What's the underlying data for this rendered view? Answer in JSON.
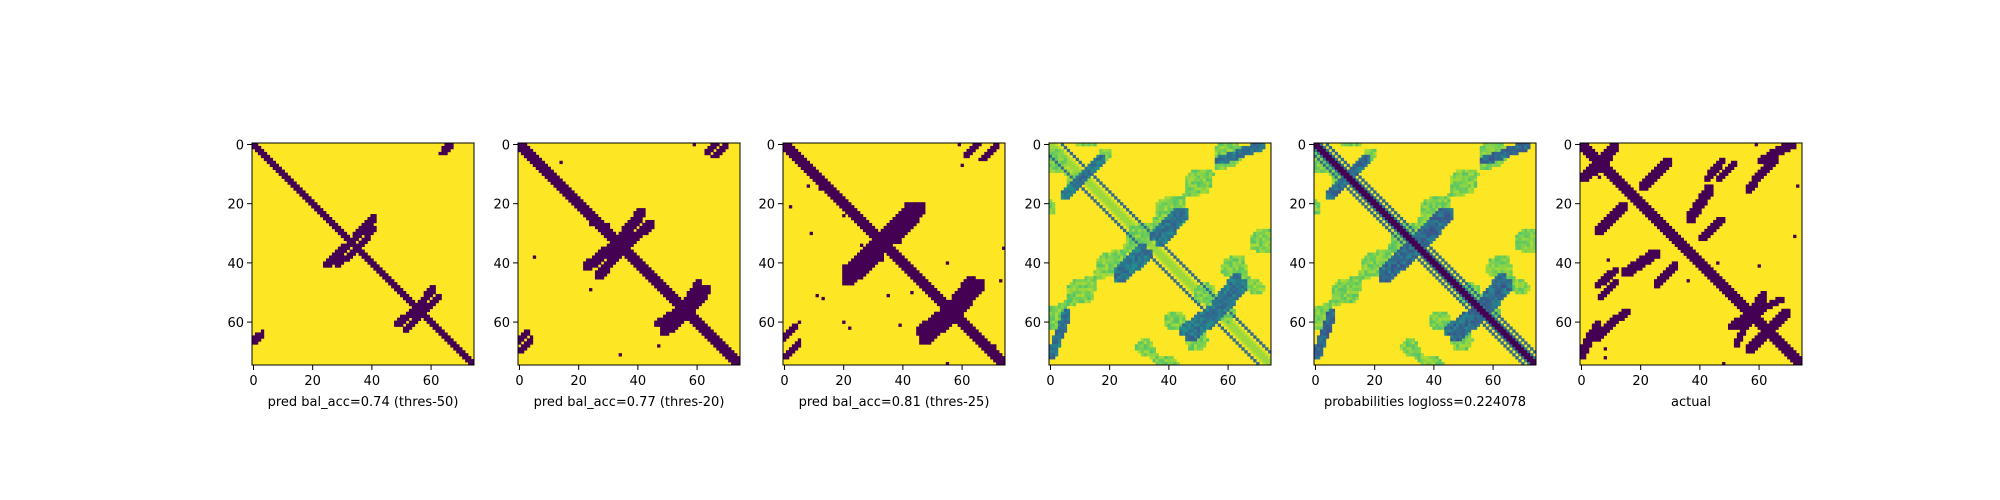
{
  "chart_data": [
    {
      "type": "heatmap",
      "xlabel": "pred bal_acc=0.74 (thres-50)",
      "title": "",
      "matrix_size": 75,
      "xticks": [
        "0",
        "20",
        "40",
        "60"
      ],
      "yticks": [
        "0",
        "20",
        "40",
        "60"
      ],
      "xlim": [
        0,
        75
      ],
      "ylim": [
        75,
        0
      ],
      "colormap": "viridis-binary",
      "colors": {
        "low": "#440154",
        "high": "#fde725"
      },
      "features": {
        "diagonal_width": 2,
        "arms": [
          {
            "rows": [
              28,
              34
            ],
            "cols": [
              36,
              41
            ]
          },
          {
            "rows": [
              34,
              41
            ],
            "cols": [
              24,
              32
            ]
          },
          {
            "rows": [
              48,
              56
            ],
            "cols": [
              55,
              61
            ]
          },
          {
            "rows": [
              56,
              63
            ],
            "cols": [
              51,
              58
            ]
          }
        ],
        "blobs": [
          {
            "rows": [
              0,
              2
            ],
            "cols": [
              64,
              68
            ]
          },
          {
            "rows": [
              63,
              67
            ],
            "cols": [
              0,
              3
            ]
          }
        ],
        "speckle": 0.0
      }
    },
    {
      "type": "heatmap",
      "xlabel": "pred bal_acc=0.77 (thres-20)",
      "title": "",
      "matrix_size": 75,
      "xticks": [
        "0",
        "20",
        "40",
        "60"
      ],
      "yticks": [
        "0",
        "20",
        "40",
        "60"
      ],
      "xlim": [
        0,
        75
      ],
      "ylim": [
        75,
        0
      ],
      "colormap": "viridis-binary",
      "colors": {
        "low": "#440154",
        "high": "#fde725"
      },
      "features": {
        "diagonal_width": 3,
        "arms": [
          {
            "rows": [
              26,
              34
            ],
            "cols": [
              36,
              45
            ]
          },
          {
            "rows": [
              34,
              42
            ],
            "cols": [
              22,
              32
            ]
          },
          {
            "rows": [
              46,
              56
            ],
            "cols": [
              55,
              61
            ]
          },
          {
            "rows": [
              56,
              64
            ],
            "cols": [
              48,
              58
            ]
          }
        ],
        "blobs": [
          {
            "rows": [
              0,
              3
            ],
            "cols": [
              63,
              70
            ]
          },
          {
            "rows": [
              62,
              70
            ],
            "cols": [
              0,
              4
            ]
          }
        ],
        "speckle": 0.002
      }
    },
    {
      "type": "heatmap",
      "xlabel": "pred bal_acc=0.81 (thres-25)",
      "title": "",
      "matrix_size": 75,
      "xticks": [
        "0",
        "20",
        "40",
        "60"
      ],
      "yticks": [
        "0",
        "20",
        "40",
        "60"
      ],
      "xlim": [
        0,
        75
      ],
      "ylim": [
        75,
        0
      ],
      "colormap": "viridis-binary",
      "colors": {
        "low": "#440154",
        "high": "#fde725"
      },
      "features": {
        "diagonal_width": 4,
        "arms": [
          {
            "rows": [
              20,
              33
            ],
            "cols": [
              36,
              47
            ]
          },
          {
            "rows": [
              33,
              44
            ],
            "cols": [
              20,
              32
            ]
          },
          {
            "rows": [
              45,
              57
            ],
            "cols": [
              55,
              64
            ]
          },
          {
            "rows": [
              57,
              67
            ],
            "cols": [
              46,
              58
            ]
          }
        ],
        "blobs": [
          {
            "rows": [
              0,
              4
            ],
            "cols": [
              61,
              72
            ]
          },
          {
            "rows": [
              61,
              72
            ],
            "cols": [
              0,
              5
            ]
          }
        ],
        "speckle": 0.006
      }
    },
    {
      "type": "heatmap",
      "xlabel": "",
      "title": "",
      "matrix_size": 75,
      "xticks": [
        "0",
        "20",
        "40",
        "60"
      ],
      "yticks": [
        "0",
        "20",
        "40",
        "60"
      ],
      "xlim": [
        0,
        75
      ],
      "ylim": [
        75,
        0
      ],
      "colormap": "viridis",
      "colors": {
        "low": "#440154",
        "high": "#fde725"
      },
      "features": {
        "mode": "probabilities",
        "offset_lines": [
          -4,
          4
        ],
        "diagonal_strength": 0.15,
        "arm_strength": 0.7,
        "haze": 0.25
      }
    },
    {
      "type": "heatmap",
      "xlabel": "probabilities logloss=0.224078",
      "title": "",
      "matrix_size": 75,
      "xticks": [
        "0",
        "20",
        "40",
        "60"
      ],
      "yticks": [
        "0",
        "20",
        "40",
        "60"
      ],
      "xlim": [
        0,
        75
      ],
      "ylim": [
        75,
        0
      ],
      "colormap": "viridis",
      "colors": {
        "low": "#440154",
        "high": "#fde725"
      },
      "features": {
        "mode": "probabilities",
        "offset_lines": [
          -4,
          4
        ],
        "diagonal_strength": 1.0,
        "arm_strength": 0.75,
        "haze": 0.25
      }
    },
    {
      "type": "heatmap",
      "xlabel": "actual",
      "title": "",
      "matrix_size": 75,
      "xticks": [
        "0",
        "20",
        "40",
        "60"
      ],
      "yticks": [
        "0",
        "20",
        "40",
        "60"
      ],
      "xlim": [
        0,
        75
      ],
      "ylim": [
        75,
        0
      ],
      "colormap": "viridis-binary",
      "colors": {
        "low": "#440154",
        "high": "#fde725"
      },
      "features": {
        "diagonal_width": 3,
        "arms": [
          {
            "rows": [
              0,
              10
            ],
            "cols": [
              3,
              12
            ]
          },
          {
            "rows": [
              5,
              15
            ],
            "cols": [
              20,
              30
            ]
          },
          {
            "rows": [
              6,
              12
            ],
            "cols": [
              46,
              52
            ]
          },
          {
            "rows": [
              0,
              6
            ],
            "cols": [
              60,
              70
            ]
          },
          {
            "rows": [
              8,
              16
            ],
            "cols": [
              56,
              62
            ]
          },
          {
            "rows": [
              14,
              26
            ],
            "cols": [
              36,
              44
            ]
          },
          {
            "rows": [
              40,
              48
            ],
            "cols": [
              25,
              32
            ]
          },
          {
            "rows": [
              42,
              48
            ],
            "cols": [
              5,
              12
            ]
          },
          {
            "rows": [
              55,
              62
            ],
            "cols": [
              50,
              62
            ]
          },
          {
            "rows": [
              60,
              68
            ],
            "cols": [
              52,
              56
            ]
          },
          {
            "rows": [
              56,
              66
            ],
            "cols": [
              60,
              70
            ]
          },
          {
            "rows": [
              58,
              66
            ],
            "cols": [
              5,
              12
            ]
          },
          {
            "rows": [
              62,
              72
            ],
            "cols": [
              0,
              5
            ]
          }
        ],
        "blobs": [],
        "speckle": 0.004
      }
    }
  ]
}
